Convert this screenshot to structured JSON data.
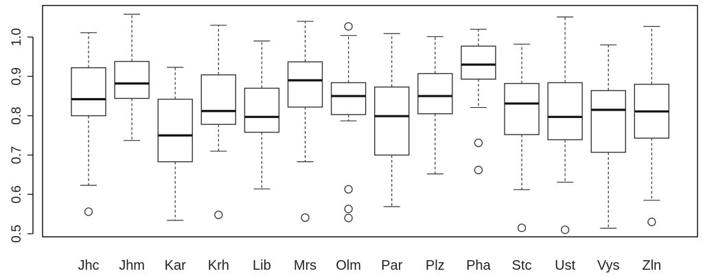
{
  "chart_data": {
    "type": "box",
    "title": "",
    "xlabel": "",
    "ylabel": "",
    "ylim": [
      0.5,
      1.07
    ],
    "yticks": [
      "0.5",
      "0.6",
      "0.7",
      "0.8",
      "0.9",
      "1.0"
    ],
    "categories": [
      "Jhc",
      "Jhm",
      "Kar",
      "Krh",
      "Lib",
      "Mrs",
      "Olm",
      "Par",
      "Plz",
      "Pha",
      "Stc",
      "Ust",
      "Vys",
      "Zln"
    ],
    "boxes": [
      {
        "min": 0.623,
        "q1": 0.8,
        "median": 0.842,
        "q3": 0.922,
        "max": 1.011,
        "outliers": [
          0.556
        ]
      },
      {
        "min": 0.737,
        "q1": 0.844,
        "median": 0.882,
        "q3": 0.938,
        "max": 1.058,
        "outliers": []
      },
      {
        "min": 0.534,
        "q1": 0.683,
        "median": 0.75,
        "q3": 0.842,
        "max": 0.923,
        "outliers": []
      },
      {
        "min": 0.71,
        "q1": 0.778,
        "median": 0.812,
        "q3": 0.904,
        "max": 1.03,
        "outliers": [
          0.548
        ]
      },
      {
        "min": 0.614,
        "q1": 0.758,
        "median": 0.797,
        "q3": 0.87,
        "max": 0.99,
        "outliers": []
      },
      {
        "min": 0.683,
        "q1": 0.822,
        "median": 0.89,
        "q3": 0.937,
        "max": 1.04,
        "outliers": [
          0.541
        ]
      },
      {
        "min": 0.787,
        "q1": 0.803,
        "median": 0.85,
        "q3": 0.884,
        "max": 1.004,
        "outliers": [
          1.027,
          0.613,
          0.563,
          0.54
        ]
      },
      {
        "min": 0.569,
        "q1": 0.7,
        "median": 0.799,
        "q3": 0.873,
        "max": 1.009,
        "outliers": []
      },
      {
        "min": 0.652,
        "q1": 0.805,
        "median": 0.85,
        "q3": 0.907,
        "max": 1.001,
        "outliers": []
      },
      {
        "min": 0.821,
        "q1": 0.893,
        "median": 0.93,
        "q3": 0.977,
        "max": 1.02,
        "outliers": [
          0.731,
          0.662
        ]
      },
      {
        "min": 0.612,
        "q1": 0.752,
        "median": 0.831,
        "q3": 0.882,
        "max": 0.982,
        "outliers": [
          0.515
        ]
      },
      {
        "min": 0.631,
        "q1": 0.739,
        "median": 0.797,
        "q3": 0.884,
        "max": 1.051,
        "outliers": [
          0.51
        ]
      },
      {
        "min": 0.514,
        "q1": 0.707,
        "median": 0.815,
        "q3": 0.864,
        "max": 0.98,
        "outliers": []
      },
      {
        "min": 0.585,
        "q1": 0.743,
        "median": 0.811,
        "q3": 0.88,
        "max": 1.027,
        "outliers": [
          0.53
        ]
      }
    ]
  }
}
